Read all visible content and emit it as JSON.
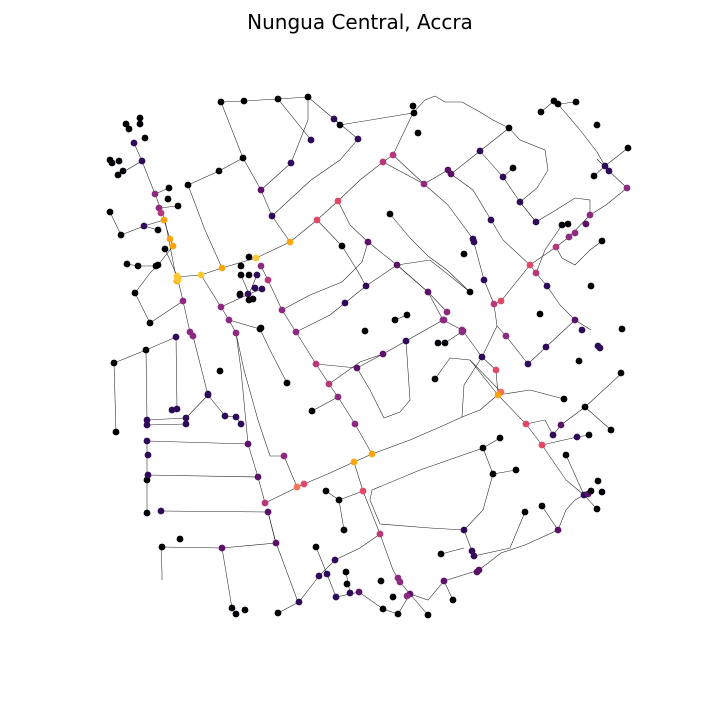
{
  "title": "Nungua Central, Accra",
  "map": {
    "type": "street-network-graph",
    "node_color_scale": "inferno",
    "palette": [
      "#000004",
      "#2d0b59",
      "#5b1168",
      "#8c2981",
      "#b73779",
      "#de4968",
      "#f7705c",
      "#fca50a",
      "#fcc830"
    ],
    "background": "#ffffff",
    "edge_color": "#222222"
  }
}
